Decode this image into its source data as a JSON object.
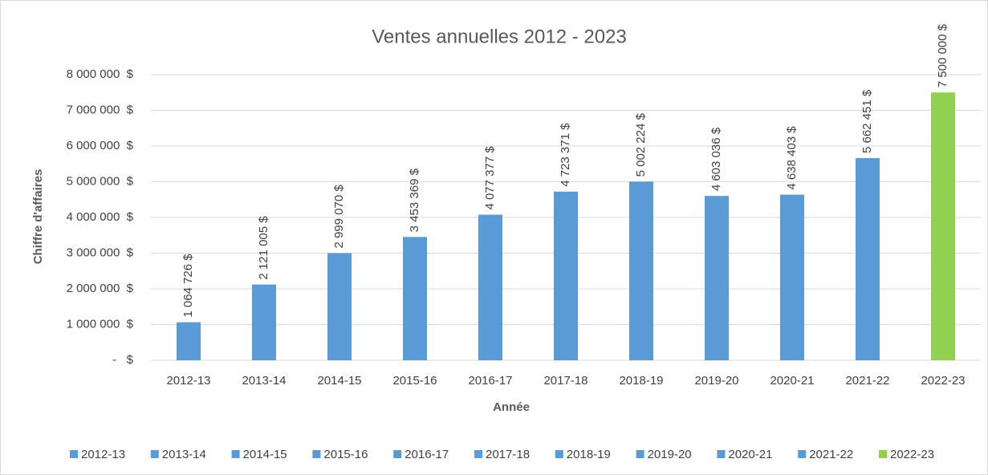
{
  "chart_data": {
    "type": "bar",
    "title": "Ventes annuelles 2012 - 2023",
    "x_label": "Année",
    "y_label": "Chiffre d'affaires",
    "categories": [
      "2012-13",
      "2013-14",
      "2014-15",
      "2015-16",
      "2016-17",
      "2017-18",
      "2018-19",
      "2019-20",
      "2020-21",
      "2021-22",
      "2022-23"
    ],
    "values": [
      1064726,
      2121005,
      2999070,
      3453369,
      4077377,
      4723371,
      5002224,
      4603036,
      4638403,
      5662451,
      7500000
    ],
    "value_labels": [
      "1 064 726 $",
      "2 121 005 $",
      "2 999 070 $",
      "3 453 369 $",
      "4 077 377 $",
      "4 723 371 $",
      "5 002 224 $",
      "4 603 036 $",
      "4 638 403 $",
      "5 662 451 $",
      "7 500 000 $"
    ],
    "colors": [
      "#5b9bd5",
      "#5b9bd5",
      "#5b9bd5",
      "#5b9bd5",
      "#5b9bd5",
      "#5b9bd5",
      "#5b9bd5",
      "#5b9bd5",
      "#5b9bd5",
      "#5b9bd5",
      "#92d050"
    ],
    "ylim": [
      0,
      8000000
    ],
    "yticks": [
      {
        "value": 0,
        "label": "-   $"
      },
      {
        "value": 1000000,
        "label": "1 000 000  $"
      },
      {
        "value": 2000000,
        "label": "2 000 000  $"
      },
      {
        "value": 3000000,
        "label": "3 000 000  $"
      },
      {
        "value": 4000000,
        "label": "4 000 000  $"
      },
      {
        "value": 5000000,
        "label": "5 000 000  $"
      },
      {
        "value": 6000000,
        "label": "6 000 000  $"
      },
      {
        "value": 7000000,
        "label": "7 000 000  $"
      },
      {
        "value": 8000000,
        "label": "8 000 000  $"
      }
    ],
    "grid": true,
    "legend": "bottom"
  }
}
